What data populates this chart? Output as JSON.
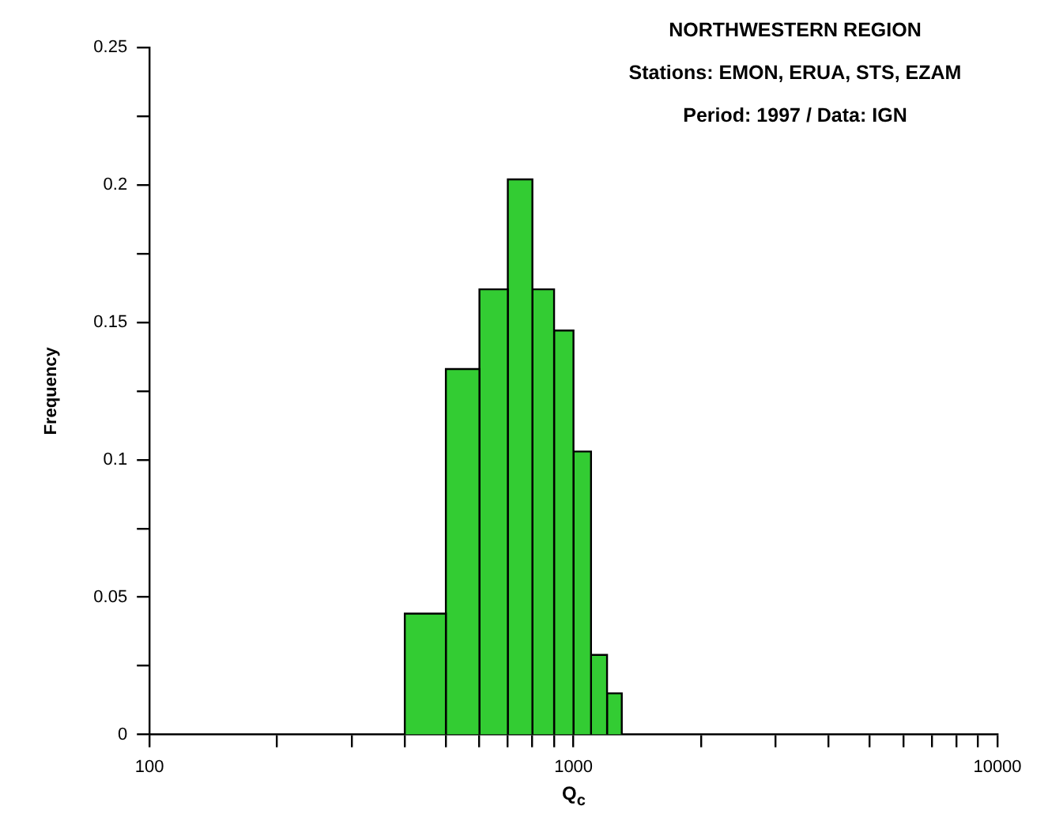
{
  "chart_data": {
    "type": "histogram",
    "title": "NORTHWESTERN  REGION",
    "subtitle": "Stations: EMON, ERUA, STS, EZAM",
    "annotations": [
      "Period: 1997  /  Data: IGN"
    ],
    "xlabel": "Q$_{c}$",
    "ylabel": "Frequency",
    "bins": [
      400,
      500,
      600,
      700,
      800,
      900,
      1000,
      1100,
      1200,
      1300
    ],
    "values": [
      0.044,
      0.133,
      0.162,
      0.202,
      0.162,
      0.147,
      0.103,
      0.029,
      0.015
    ],
    "color": "#33cc33",
    "log": "x",
    "xlim": [
      100,
      10000
    ],
    "xticks": [
      100,
      {
        "value": 200,
        "label": null
      },
      {
        "value": 300,
        "label": null
      },
      {
        "value": 400,
        "label": null
      },
      {
        "value": 500,
        "label": null
      },
      {
        "value": 600,
        "label": null
      },
      {
        "value": 700,
        "label": null
      },
      {
        "value": 800,
        "label": null
      },
      {
        "value": 900,
        "label": null
      },
      1000,
      {
        "value": 2000,
        "label": null
      },
      {
        "value": 3000,
        "label": null
      },
      {
        "value": 4000,
        "label": null
      },
      {
        "value": 5000,
        "label": null
      },
      {
        "value": 6000,
        "label": null
      },
      {
        "value": 7000,
        "label": null
      },
      {
        "value": 8000,
        "label": null
      },
      {
        "value": 9000,
        "label": null
      },
      10000
    ],
    "ylim": [
      0,
      0.25
    ],
    "yticks": [
      0,
      {
        "value": 0.025,
        "label": null
      },
      0.05,
      {
        "value": 0.075,
        "label": null
      },
      0.1,
      {
        "value": 0.125,
        "label": null
      },
      0.15,
      {
        "value": 0.175,
        "label": null
      },
      0.2,
      {
        "value": 0.225,
        "label": null
      },
      0.25
    ],
    "grid": false,
    "legend": false
  }
}
